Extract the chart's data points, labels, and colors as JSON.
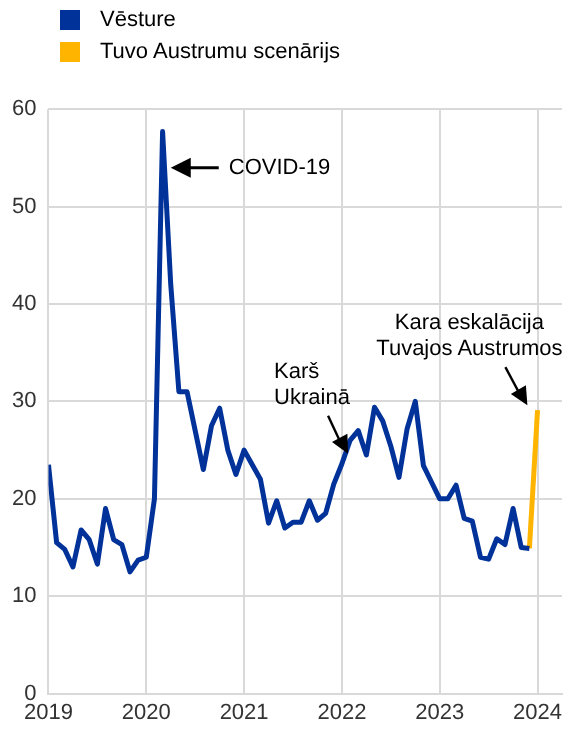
{
  "chart_data": {
    "type": "line",
    "legend": "top left",
    "grid": true,
    "xlim": [
      "2019-01",
      "2024-04"
    ],
    "xticks": [
      "2019",
      "2020",
      "2021",
      "2022",
      "2023",
      "2024"
    ],
    "ylim": [
      0,
      60
    ],
    "yticks": [
      0,
      10,
      20,
      30,
      40,
      50,
      60
    ],
    "annotations": [
      {
        "text": "COVID-19",
        "x": "2020-04",
        "y": 54
      },
      {
        "text": "Karš\nUkrainā",
        "x": "2022-02",
        "y": 24
      },
      {
        "text": "Kara eskalācija\nTuvajos Austrumos",
        "x": "2023-12",
        "y": 29
      }
    ],
    "series": [
      {
        "name": "Vēsture",
        "color": "#003299",
        "x": [
          "2019-01",
          "2019-02",
          "2019-03",
          "2019-04",
          "2019-05",
          "2019-06",
          "2019-07",
          "2019-08",
          "2019-09",
          "2019-10",
          "2019-11",
          "2019-12",
          "2020-01",
          "2020-02",
          "2020-03",
          "2020-04",
          "2020-05",
          "2020-06",
          "2020-07",
          "2020-08",
          "2020-09",
          "2020-10",
          "2020-11",
          "2020-12",
          "2021-01",
          "2021-02",
          "2021-03",
          "2021-04",
          "2021-05",
          "2021-06",
          "2021-07",
          "2021-08",
          "2021-09",
          "2021-10",
          "2021-11",
          "2021-12",
          "2022-01",
          "2022-02",
          "2022-03",
          "2022-04",
          "2022-05",
          "2022-06",
          "2022-07",
          "2022-08",
          "2022-09",
          "2022-10",
          "2022-11",
          "2022-12",
          "2023-01",
          "2023-02",
          "2023-03",
          "2023-04",
          "2023-05",
          "2023-06",
          "2023-07",
          "2023-08",
          "2023-09",
          "2023-10",
          "2023-11",
          "2023-12"
        ],
        "values": [
          23.5,
          15.5,
          14.8,
          13,
          16.8,
          15.8,
          13.3,
          19,
          15.8,
          15.3,
          12.5,
          13.7,
          14,
          20,
          57.7,
          42,
          31,
          31,
          27,
          23,
          27.5,
          29.3,
          25,
          22.5,
          25,
          23.5,
          22,
          17.5,
          19.8,
          17,
          17.6,
          17.6,
          19.8,
          17.8,
          18.5,
          21.5,
          23.6,
          26,
          27,
          24.5,
          29.4,
          28,
          25.4,
          22.2,
          27.2,
          30,
          23.4,
          21.7,
          20,
          20,
          21.4,
          18,
          17.7,
          14,
          13.8,
          15.9,
          15.3,
          19,
          15,
          14.9
        ]
      },
      {
        "name": "Tuvo Austrumu scenārijs",
        "color": "#ffb400",
        "x": [
          "2023-12",
          "2024-01"
        ],
        "values": [
          14.9,
          29.1
        ]
      }
    ]
  }
}
